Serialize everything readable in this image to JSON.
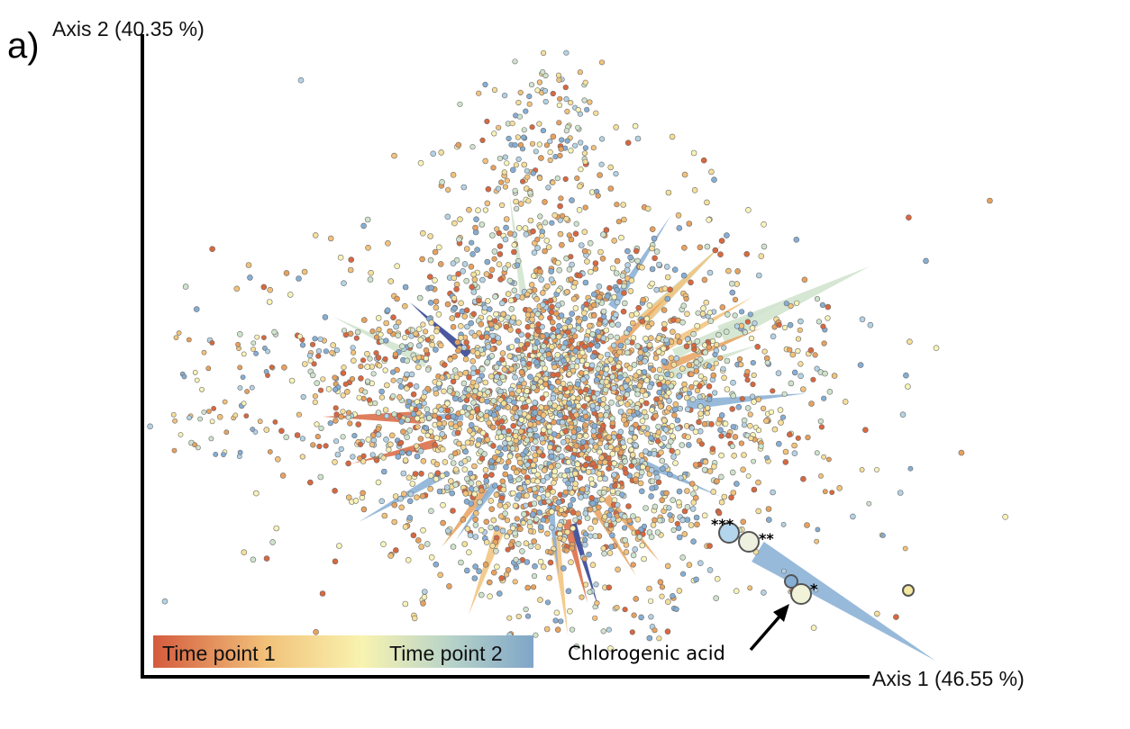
{
  "chart_data": {
    "type": "scatter",
    "panel_label": "a)",
    "xlabel": "Axis 1 (46.55 %)",
    "ylabel": "Axis 2 (40.35 %)",
    "legend": {
      "start_label": "Time point 1",
      "end_label": "Time point 2",
      "gradient_colors": [
        "#d45b3e",
        "#f2c27a",
        "#f8f3b0",
        "#b8d3c8",
        "#7fa6c8"
      ]
    },
    "annotation": {
      "text": "Chlorogenic acid"
    },
    "significance_markers": [
      "***",
      "**",
      "*"
    ],
    "point_palette": [
      "#d9673f",
      "#e8a15d",
      "#f2c27a",
      "#f5df9a",
      "#f8f3b8",
      "#cfe3cc",
      "#b4d2e4",
      "#86aed4"
    ],
    "highlighted_points": [
      {
        "marker": "***",
        "color": "#b4d6ec"
      },
      {
        "marker": "**",
        "color": "#eef0e0"
      },
      {
        "marker": "*",
        "color": "#f2f2d8"
      },
      {
        "marker": "",
        "color": "#86aed4"
      },
      {
        "marker": "",
        "color": "#f5e8a0"
      }
    ]
  }
}
